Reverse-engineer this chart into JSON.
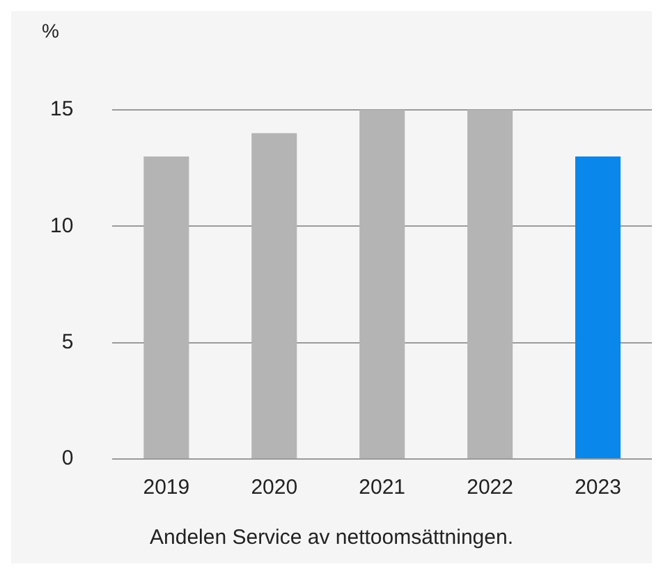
{
  "chart_data": {
    "type": "bar",
    "ylabel": "%",
    "categories": [
      "2019",
      "2020",
      "2021",
      "2022",
      "2023"
    ],
    "values": [
      13,
      14,
      15,
      15,
      13
    ],
    "colors": [
      "#b4b4b4",
      "#b4b4b4",
      "#b4b4b4",
      "#b4b4b4",
      "#0a87eb"
    ],
    "ylim": [
      0,
      15
    ],
    "yticks": [
      0,
      5,
      10,
      15
    ],
    "grid": "y",
    "annotations": [
      "Andelen Service av nettoomsättningen."
    ]
  }
}
